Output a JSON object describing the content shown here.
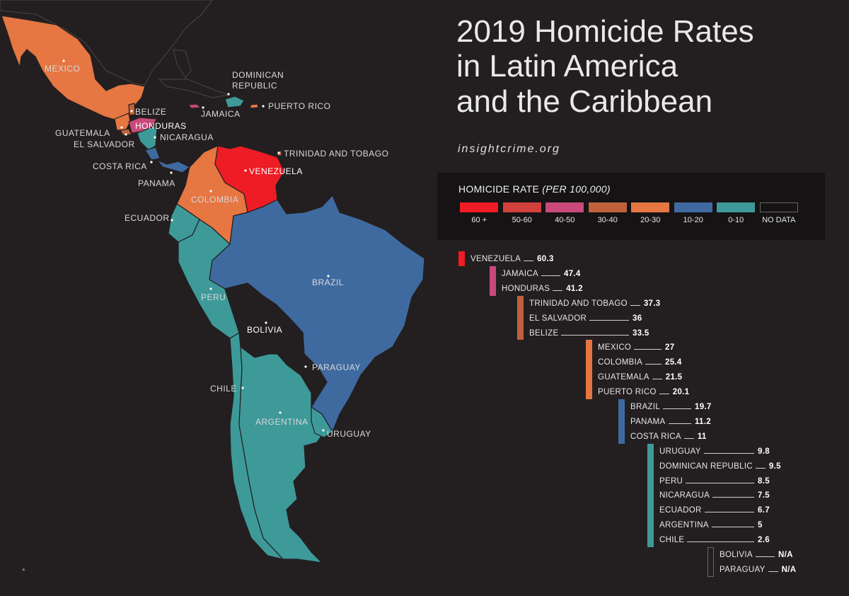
{
  "title_lines": [
    "2019 Homicide Rates",
    "in Latin America",
    "and the Caribbean"
  ],
  "source": "insightcrime.org",
  "legend": {
    "title": "HOMICIDE RATE",
    "title_unit": "(PER 100,000)",
    "items": [
      {
        "label": "60 +",
        "color": "#ee1c24"
      },
      {
        "label": "50-60",
        "color": "#d2403c"
      },
      {
        "label": "40-50",
        "color": "#c8497a"
      },
      {
        "label": "30-40",
        "color": "#c0613d"
      },
      {
        "label": "20-30",
        "color": "#e67642"
      },
      {
        "label": "10-20",
        "color": "#3f6aa0"
      },
      {
        "label": "0-10",
        "color": "#3d9a99"
      },
      {
        "label": "NO DATA",
        "color": "none"
      }
    ]
  },
  "ranking": [
    {
      "country": "VENEZUELA",
      "value": "60.3",
      "band": "60 +"
    },
    {
      "country": "JAMAICA",
      "value": "47.4",
      "band": "40-50"
    },
    {
      "country": "HONDURAS",
      "value": "41.2",
      "band": "40-50"
    },
    {
      "country": "TRINIDAD AND TOBAGO",
      "value": "37.3",
      "band": "30-40"
    },
    {
      "country": "EL SALVADOR",
      "value": "36",
      "band": "30-40"
    },
    {
      "country": "BELIZE",
      "value": "33.5",
      "band": "30-40"
    },
    {
      "country": "MEXICO",
      "value": "27",
      "band": "20-30"
    },
    {
      "country": "COLOMBIA",
      "value": "25.4",
      "band": "20-30"
    },
    {
      "country": "GUATEMALA",
      "value": "21.5",
      "band": "20-30"
    },
    {
      "country": "PUERTO RICO",
      "value": "20.1",
      "band": "20-30"
    },
    {
      "country": "BRAZIL",
      "value": "19.7",
      "band": "10-20"
    },
    {
      "country": "PANAMA",
      "value": "11.2",
      "band": "10-20"
    },
    {
      "country": "COSTA RICA",
      "value": "11",
      "band": "10-20"
    },
    {
      "country": "URUGUAY",
      "value": "9.8",
      "band": "0-10"
    },
    {
      "country": "DOMINICAN REPUBLIC",
      "value": "9.5",
      "band": "0-10"
    },
    {
      "country": "PERU",
      "value": "8.5",
      "band": "0-10"
    },
    {
      "country": "NICARAGUA",
      "value": "7.5",
      "band": "0-10"
    },
    {
      "country": "ECUADOR",
      "value": "6.7",
      "band": "0-10"
    },
    {
      "country": "ARGENTINA",
      "value": "5",
      "band": "0-10"
    },
    {
      "country": "CHILE",
      "value": "2.6",
      "band": "0-10"
    },
    {
      "country": "BOLIVIA",
      "value": "N/A",
      "band": "NO DATA"
    },
    {
      "country": "PARAGUAY",
      "value": "N/A",
      "band": "NO DATA"
    }
  ],
  "map_labels": {
    "mexico": "MEXICO",
    "dominican_republic_1": "DOMINICAN",
    "dominican_republic_2": "REPUBLIC",
    "puerto_rico": "PUERTO RICO",
    "jamaica": "JAMAICA",
    "belize": "BELIZE",
    "honduras": "HONDURAS",
    "guatemala": "GUATEMALA",
    "nicaragua": "NICARAGUA",
    "el_salvador": "EL SALVADOR",
    "trinidad": "TRINIDAD AND TOBAGO",
    "costa_rica": "COSTA RICA",
    "venezuela": "VENEZUELA",
    "panama": "PANAMA",
    "colombia": "COLOMBIA",
    "ecuador": "ECUADOR",
    "brazil": "BRAZIL",
    "peru": "PERU",
    "bolivia": "BOLIVIA",
    "paraguay": "PARAGUAY",
    "chile": "CHILE",
    "argentina": "ARGENTINA",
    "uruguay": "URUGUAY"
  },
  "footnote": "*"
}
